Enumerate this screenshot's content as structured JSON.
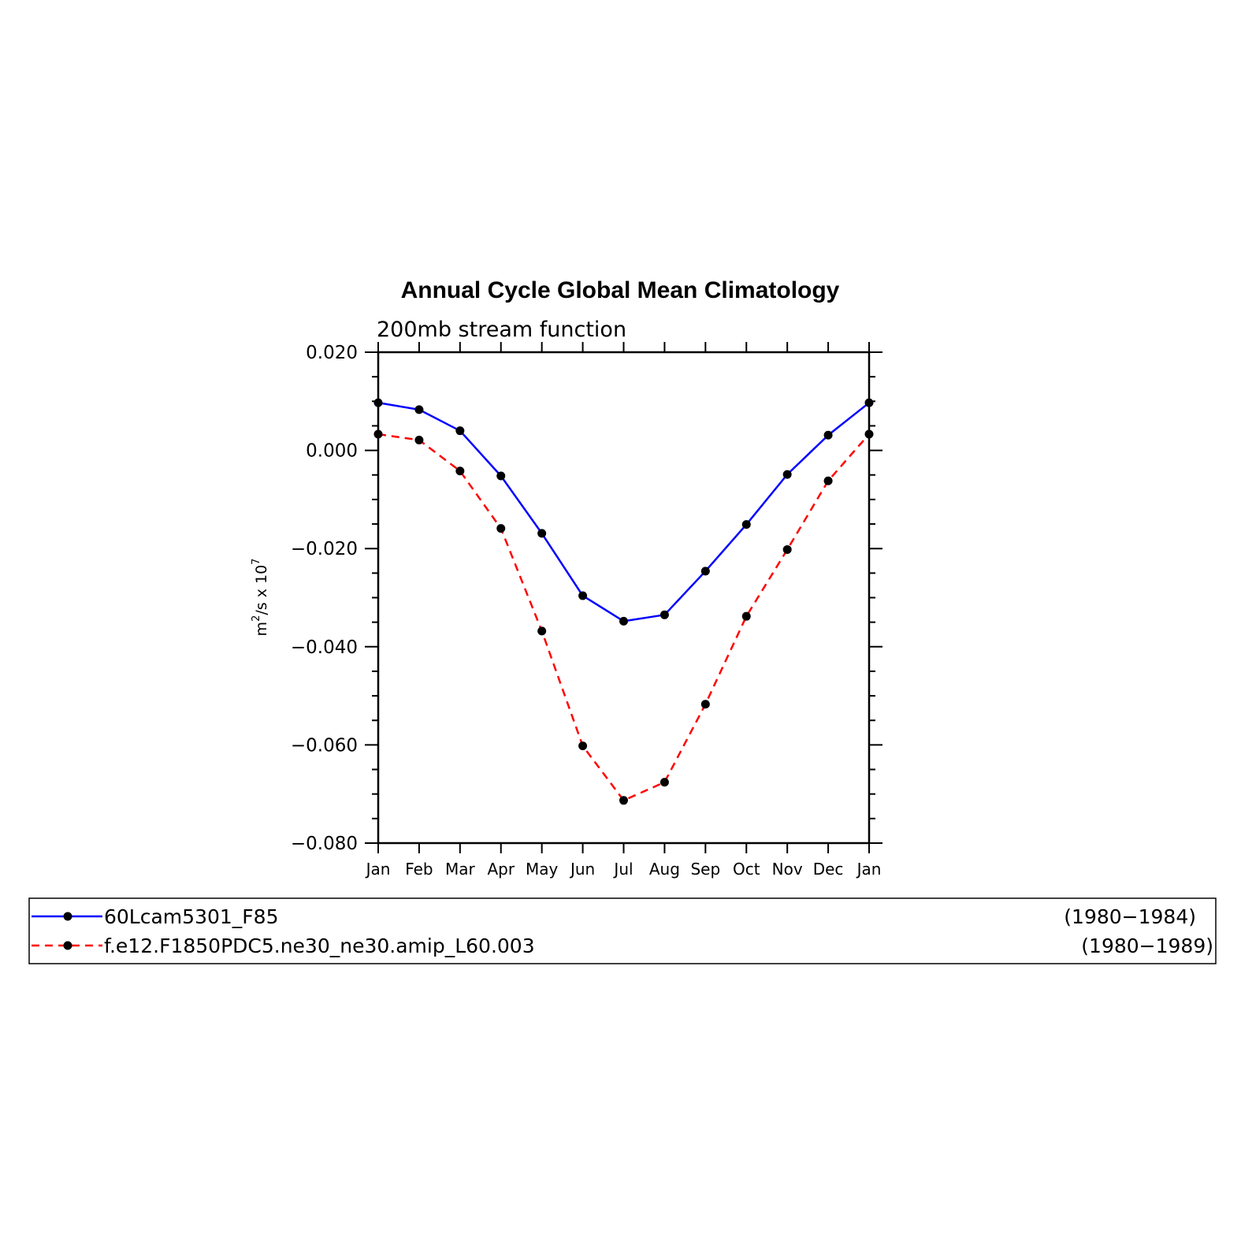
{
  "chart_data": {
    "type": "line",
    "title": "Annual Cycle Global Mean Climatology",
    "subtitle": "200mb stream function",
    "ylabel": "m²/s x 10⁷",
    "ylabel_base": "m",
    "ylabel_exp1": "2",
    "ylabel_mid": "/s x 10",
    "ylabel_exp2": "7",
    "xlabel": "",
    "categories": [
      "Jan",
      "Feb",
      "Mar",
      "Apr",
      "May",
      "Jun",
      "Jul",
      "Aug",
      "Sep",
      "Oct",
      "Nov",
      "Dec",
      "Jan"
    ],
    "ylim": [
      -0.08,
      0.02
    ],
    "yticks": [
      0.02,
      0.0,
      -0.02,
      -0.04,
      -0.06,
      -0.08
    ],
    "ytick_labels": [
      "0.020",
      "0.000",
      "−0.020",
      "−0.040",
      "−0.060",
      "−0.080"
    ],
    "series": [
      {
        "name": "60Lcam5301_F85",
        "period": "(1980−1984)",
        "color": "#0000ff",
        "line_style": "solid",
        "values": [
          0.0097,
          0.0083,
          0.004,
          -0.0052,
          -0.0169,
          -0.0296,
          -0.0348,
          -0.0335,
          -0.0246,
          -0.0151,
          -0.0049,
          0.0031,
          0.0097
        ]
      },
      {
        "name": "f.e12.F1850PDC5.ne30_ne30.amip_L60.003",
        "period": "(1980−1989)",
        "color": "#ff0000",
        "line_style": "dashed",
        "values": [
          0.0033,
          0.0021,
          -0.0042,
          -0.0159,
          -0.0368,
          -0.0602,
          -0.0713,
          -0.0676,
          -0.0517,
          -0.0338,
          -0.0202,
          -0.0062,
          0.0033
        ]
      }
    ],
    "grid": false,
    "legend_position": "bottom"
  }
}
